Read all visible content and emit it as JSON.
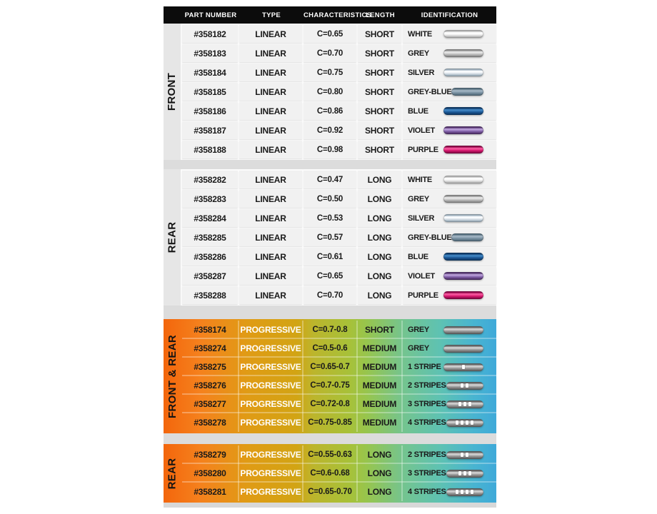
{
  "header": {
    "columns": [
      "PART NUMBER",
      "TYPE",
      "CHARACTERISTICS",
      "LENGTH",
      "IDENTIFICATION"
    ]
  },
  "sections": [
    {
      "label": "FRONT",
      "theme": "linear",
      "rows": [
        {
          "part": "#358182",
          "type": "LINEAR",
          "characteristics": "C=0.65",
          "length": "SHORT",
          "identification": "WHITE",
          "bar": "white",
          "stripes": 0
        },
        {
          "part": "#358183",
          "type": "LINEAR",
          "characteristics": "C=0.70",
          "length": "SHORT",
          "identification": "GREY",
          "bar": "grey",
          "stripes": 0
        },
        {
          "part": "#358184",
          "type": "LINEAR",
          "characteristics": "C=0.75",
          "length": "SHORT",
          "identification": "SILVER",
          "bar": "silver",
          "stripes": 0
        },
        {
          "part": "#358185",
          "type": "LINEAR",
          "characteristics": "C=0.80",
          "length": "SHORT",
          "identification": "GREY-BLUE",
          "bar": "grey-blue",
          "stripes": 0
        },
        {
          "part": "#358186",
          "type": "LINEAR",
          "characteristics": "C=0.86",
          "length": "SHORT",
          "identification": "BLUE",
          "bar": "blue",
          "stripes": 0
        },
        {
          "part": "#358187",
          "type": "LINEAR",
          "characteristics": "C=0.92",
          "length": "SHORT",
          "identification": "VIOLET",
          "bar": "violet",
          "stripes": 0
        },
        {
          "part": "#358188",
          "type": "LINEAR",
          "characteristics": "C=0.98",
          "length": "SHORT",
          "identification": "PURPLE",
          "bar": "purple",
          "stripes": 0
        }
      ]
    },
    {
      "label": "REAR",
      "theme": "linear",
      "rows": [
        {
          "part": "#358282",
          "type": "LINEAR",
          "characteristics": "C=0.47",
          "length": "LONG",
          "identification": "WHITE",
          "bar": "white",
          "stripes": 0
        },
        {
          "part": "#358283",
          "type": "LINEAR",
          "characteristics": "C=0.50",
          "length": "LONG",
          "identification": "GREY",
          "bar": "grey",
          "stripes": 0
        },
        {
          "part": "#358284",
          "type": "LINEAR",
          "characteristics": "C=0.53",
          "length": "LONG",
          "identification": "SILVER",
          "bar": "silver",
          "stripes": 0
        },
        {
          "part": "#358285",
          "type": "LINEAR",
          "characteristics": "C=0.57",
          "length": "LONG",
          "identification": "GREY-BLUE",
          "bar": "grey-blue",
          "stripes": 0
        },
        {
          "part": "#358286",
          "type": "LINEAR",
          "characteristics": "C=0.61",
          "length": "LONG",
          "identification": "BLUE",
          "bar": "blue",
          "stripes": 0
        },
        {
          "part": "#358287",
          "type": "LINEAR",
          "characteristics": "C=0.65",
          "length": "LONG",
          "identification": "VIOLET",
          "bar": "violet",
          "stripes": 0
        },
        {
          "part": "#358288",
          "type": "LINEAR",
          "characteristics": "C=0.70",
          "length": "LONG",
          "identification": "PURPLE",
          "bar": "purple",
          "stripes": 0
        }
      ]
    },
    {
      "label": "FRONT & REAR",
      "theme": "progressive",
      "rows": [
        {
          "part": "#358174",
          "type": "PROGRESSIVE",
          "characteristics": "C=0.7-0.8",
          "length": "SHORT",
          "identification": "GREY",
          "bar": "grey-rod",
          "stripes": 0
        },
        {
          "part": "#358274",
          "type": "PROGRESSIVE",
          "characteristics": "C=0.5-0.6",
          "length": "MEDIUM",
          "identification": "GREY",
          "bar": "grey-rod",
          "stripes": 0
        },
        {
          "part": "#358275",
          "type": "PROGRESSIVE",
          "characteristics": "C=0.65-0.7",
          "length": "MEDIUM",
          "identification": "1 STRIPE",
          "bar": "grey-rod",
          "stripes": 1
        },
        {
          "part": "#358276",
          "type": "PROGRESSIVE",
          "characteristics": "C=0.7-0.75",
          "length": "MEDIUM",
          "identification": "2 STRIPES",
          "bar": "grey-rod",
          "stripes": 2
        },
        {
          "part": "#358277",
          "type": "PROGRESSIVE",
          "characteristics": "C=0.72-0.8",
          "length": "MEDIUM",
          "identification": "3 STRIPES",
          "bar": "grey-rod",
          "stripes": 3
        },
        {
          "part": "#358278",
          "type": "PROGRESSIVE",
          "characteristics": "C=0.75-0.85",
          "length": "MEDIUM",
          "identification": "4 STRIPES",
          "bar": "grey-rod",
          "stripes": 4
        }
      ]
    },
    {
      "label": "REAR",
      "theme": "progressive",
      "rows": [
        {
          "part": "#358279",
          "type": "PROGRESSIVE",
          "characteristics": "C=0.55-0.63",
          "length": "LONG",
          "identification": "2 STRIPES",
          "bar": "grey-rod",
          "stripes": 2
        },
        {
          "part": "#358280",
          "type": "PROGRESSIVE",
          "characteristics": "C=0.6-0.68",
          "length": "LONG",
          "identification": "3 STRIPES",
          "bar": "grey-rod",
          "stripes": 3
        },
        {
          "part": "#358281",
          "type": "PROGRESSIVE",
          "characteristics": "C=0.65-0.70",
          "length": "LONG",
          "identification": "4 STRIPES",
          "bar": "grey-rod",
          "stripes": 4
        }
      ]
    }
  ],
  "bar_colors": {
    "white": {
      "edge": "#b5b5b5",
      "hi": "#ffffff",
      "base": "#ececec"
    },
    "grey": {
      "edge": "#8f8f8f",
      "hi": "#e6e6e6",
      "base": "#c2c2c2"
    },
    "silver": {
      "edge": "#9fb0bd",
      "hi": "#fbfdff",
      "base": "#dde4ea"
    },
    "grey-blue": {
      "edge": "#57707f",
      "hi": "#9fb2c0",
      "base": "#7b92a3"
    },
    "blue": {
      "edge": "#103c6b",
      "hi": "#3f83c0",
      "base": "#1d5a99"
    },
    "violet": {
      "edge": "#55356f",
      "hi": "#b79dd6",
      "base": "#8362ab"
    },
    "purple": {
      "edge": "#8e0a4a",
      "hi": "#f4549b",
      "base": "#d8186f"
    },
    "grey-rod": {
      "edge": "#6a6a6a",
      "hi": "#cfcfcf",
      "base": "#9b9b9b"
    }
  },
  "theme_colors": {
    "header_bg": "#0c0c0c",
    "header_text": "#ffffff",
    "linear_cell_bg": "#f1f1f1",
    "linear_side_bg": "#e6e6e6",
    "gap_band": "#dcdcdc",
    "text": "#1a1a1a",
    "progressive_type_text": "#ffffff",
    "progressive_gradient": [
      "#f3660c 0%",
      "#f5811d 11%",
      "#e09b15 25%",
      "#d2a414 40%",
      "#bcb52c 45%",
      "#a7c139 56%",
      "#97c54d 61%",
      "#74c48f 72%",
      "#5ec2b2 83%",
      "#49b5d0 93%",
      "#3fa9d9 100%"
    ]
  }
}
